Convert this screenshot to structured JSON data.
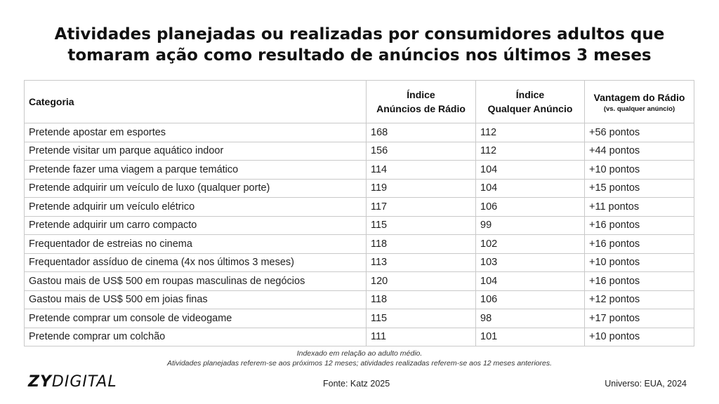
{
  "title": {
    "line1": "Atividades planejadas ou realizadas por consumidores adultos que",
    "line2": "tomaram ação como resultado de anúncios nos últimos 3 meses"
  },
  "table": {
    "headers": {
      "category": "Categoria",
      "radio_line1": "Índice",
      "radio_line2": "Anúncios de Rádio",
      "any_line1": "Índice",
      "any_line2": "Qualquer Anúncio",
      "advantage_line1": "Vantagem do Rádio",
      "advantage_line2": "(vs. qualquer anúncio)"
    },
    "rows": [
      {
        "category": "Pretende apostar em esportes",
        "radio": "168",
        "any": "112",
        "advantage": "+56 pontos"
      },
      {
        "category": "Pretende visitar um parque aquático indoor",
        "radio": "156",
        "any": "112",
        "advantage": "+44 pontos"
      },
      {
        "category": "Pretende fazer uma viagem a parque temático",
        "radio": "114",
        "any": "104",
        "advantage": "+10 pontos"
      },
      {
        "category": "Pretende adquirir um veículo de luxo (qualquer porte)",
        "radio": "119",
        "any": "104",
        "advantage": "+15 pontos"
      },
      {
        "category": "Pretende adquirir um veículo elétrico",
        "radio": "117",
        "any": "106",
        "advantage": "+11 pontos"
      },
      {
        "category": "Pretende adquirir um carro compacto",
        "radio": "115",
        "any": "99",
        "advantage": "+16 pontos"
      },
      {
        "category": "Frequentador de estreias no cinema",
        "radio": "118",
        "any": "102",
        "advantage": "+16 pontos"
      },
      {
        "category": "Frequentador assíduo de cinema (4x nos últimos 3 meses)",
        "radio": "113",
        "any": "103",
        "advantage": "+10 pontos"
      },
      {
        "category": "Gastou mais de US$ 500 em roupas masculinas de negócios",
        "radio": "120",
        "any": "104",
        "advantage": "+16 pontos"
      },
      {
        "category": "Gastou mais de US$ 500 em joias finas",
        "radio": "118",
        "any": "106",
        "advantage": "+12 pontos"
      },
      {
        "category": "Pretende comprar um console de videogame",
        "radio": "115",
        "any": "98",
        "advantage": "+17 pontos"
      },
      {
        "category": "Pretende comprar um colchão",
        "radio": "111",
        "any": "101",
        "advantage": "+10 pontos"
      }
    ]
  },
  "notes": {
    "line1": "Indexado em relação ao adulto médio.",
    "line2": "Atividades planejadas referem-se aos próximos 12 meses; atividades realizadas referem-se aos 12 meses anteriores."
  },
  "footer": {
    "logo_bold": "ZY",
    "logo_light": "DIGITAL",
    "source": "Fonte: Katz 2025",
    "universe": "Universo: EUA, 2024"
  }
}
